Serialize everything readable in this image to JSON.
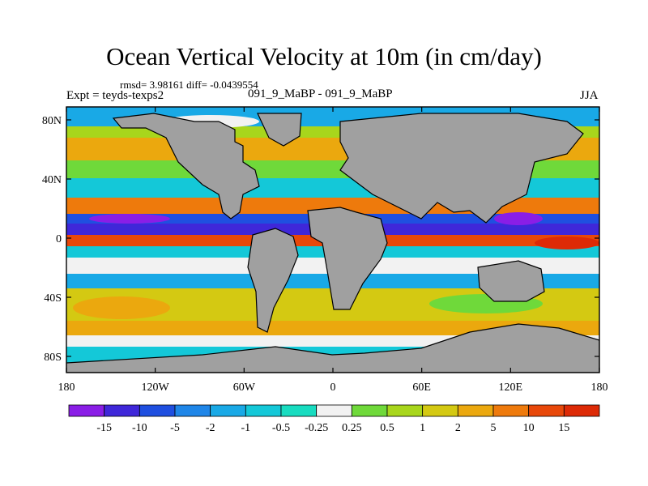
{
  "chart_data": {
    "type": "heatmap",
    "title": "Ocean Vertical Velocity at 10m (in cm/day)",
    "stats_line": "rmsd= 3.98161  diff= -0.0439554",
    "left_label": "Expt = teyds-texps2",
    "center_label": "091_9_MaBP - 091_9_MaBP",
    "right_label": "JJA",
    "x_ticks": [
      "180",
      "120W",
      "60W",
      "0",
      "60E",
      "120E",
      "180"
    ],
    "y_ticks": [
      "80N",
      "40N",
      "0",
      "40S",
      "80S"
    ],
    "colorbar": {
      "labels": [
        "-15",
        "-10",
        "-5",
        "-2",
        "-1",
        "-0.5",
        "-0.25",
        "0.25",
        "0.5",
        "1",
        "2",
        "5",
        "10",
        "15"
      ],
      "colors": [
        "#8a1ee6",
        "#3f27d9",
        "#1f4fe0",
        "#1f86e8",
        "#19a9e6",
        "#14c8d8",
        "#18dcc0",
        "#f2f2f2",
        "#6fd93a",
        "#a8d61c",
        "#d4c912",
        "#eba80e",
        "#ee7a0c",
        "#e8480a",
        "#dd2a06"
      ]
    },
    "land_color": "#a0a0a0"
  }
}
